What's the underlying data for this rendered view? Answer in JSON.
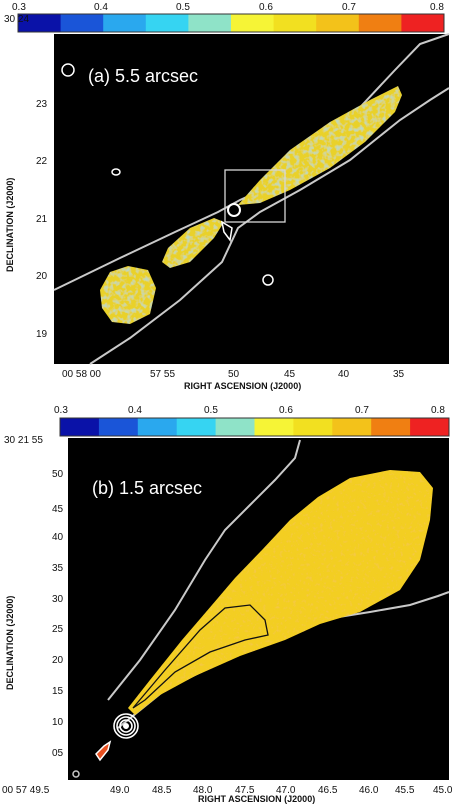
{
  "colorbar": {
    "ticks": [
      "0.3",
      "0.4",
      "0.5",
      "0.6",
      "0.7",
      "0.8"
    ],
    "colors": [
      "#0a12a8",
      "#1a55d8",
      "#2aa8ee",
      "#36d4f2",
      "#8fe3c8",
      "#f6f436",
      "#f2e020",
      "#f3c21a",
      "#f07f12",
      "#ee2222"
    ]
  },
  "panel_a": {
    "label": "(a) 5.5 arcsec",
    "xlabel": "RIGHT ASCENSION (J2000)",
    "ylabel": "DECLINATION (J2000)",
    "xticks": [
      "00 58 00",
      "57 55",
      "50",
      "45",
      "40",
      "35"
    ],
    "yticks": [
      "30 24",
      "23",
      "22",
      "21",
      "20",
      "19"
    ]
  },
  "panel_b": {
    "label": "(b) 1.5 arcsec",
    "xlabel": "RIGHT ASCENSION (J2000)",
    "ylabel": "DECLINATION (J2000)",
    "xticks": [
      "00 57 49.5",
      "49.0",
      "48.5",
      "48.0",
      "47.5",
      "47.0",
      "46.5",
      "46.0",
      "45.5",
      "45.0"
    ],
    "yticks": [
      "30 21 55",
      "50",
      "45",
      "40",
      "35",
      "30",
      "25",
      "20",
      "15",
      "10",
      "05"
    ]
  }
}
